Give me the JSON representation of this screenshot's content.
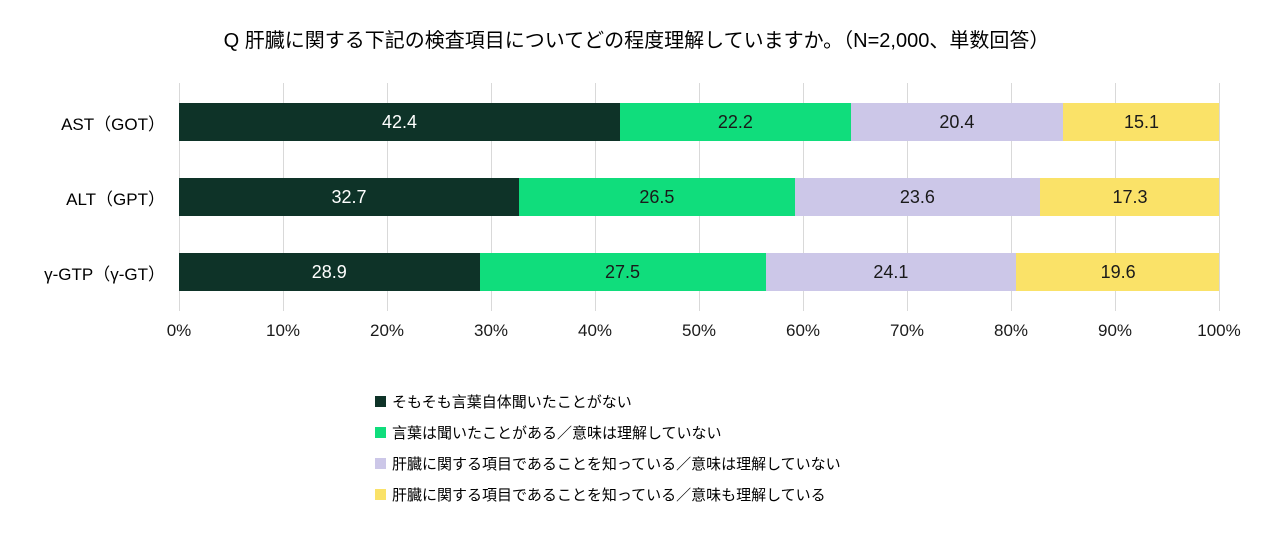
{
  "title": "Q 肝臓に関する下記の検査項目についてどの程度理解していますか。（N=2,000、単数回答）",
  "chart_data": {
    "type": "bar",
    "orientation": "horizontal",
    "stacked": true,
    "title": "Q 肝臓に関する下記の検査項目についてどの程度理解していますか。（N=2,000、単数回答）",
    "categories": [
      "AST（GOT）",
      "ALT（GPT）",
      "γ-GTP（γ-GT）"
    ],
    "series": [
      {
        "name": "そもそも言葉自体聞いたことがない",
        "values": [
          42.4,
          32.7,
          28.9
        ],
        "color": "#0e3328",
        "label_color": "#ffffff"
      },
      {
        "name": "言葉は聞いたことがある／意味は理解していない",
        "values": [
          22.2,
          26.5,
          27.5
        ],
        "color": "#10dd7c",
        "label_color": "#1a1a1a"
      },
      {
        "name": "肝臓に関する項目であることを知っている／意味は理解していない",
        "values": [
          20.4,
          23.6,
          24.1
        ],
        "color": "#ccc7e8",
        "label_color": "#1a1a1a"
      },
      {
        "name": "肝臓に関する項目であることを知っている／意味も理解している",
        "values": [
          15.1,
          17.3,
          19.6
        ],
        "color": "#fae268",
        "label_color": "#1a1a1a"
      }
    ],
    "x_ticks": [
      "0%",
      "10%",
      "20%",
      "30%",
      "40%",
      "50%",
      "60%",
      "70%",
      "80%",
      "90%",
      "100%"
    ],
    "xlim": [
      0,
      100
    ],
    "grid": true,
    "gridline_color": "#d9d9d9",
    "legend_position": "bottom"
  }
}
